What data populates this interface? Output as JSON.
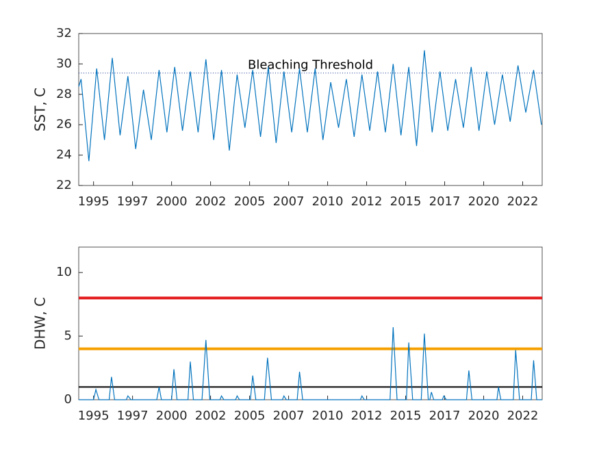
{
  "chart_data": [
    {
      "type": "line",
      "ylabel": "SST, C",
      "xlim": [
        1994.05,
        2023.75
      ],
      "ylim": [
        22,
        32
      ],
      "yticks": [
        22,
        24,
        26,
        28,
        30,
        32
      ],
      "xticks": [
        {
          "value": 1995,
          "label": "1995"
        },
        {
          "value": 1997.5,
          "label": "1997"
        },
        {
          "value": 2000,
          "label": "2000"
        },
        {
          "value": 2002.5,
          "label": "2002"
        },
        {
          "value": 2005,
          "label": "2005"
        },
        {
          "value": 2007.5,
          "label": "2007"
        },
        {
          "value": 2010,
          "label": "2010"
        },
        {
          "value": 2012.5,
          "label": "2012"
        },
        {
          "value": 2015,
          "label": "2015"
        },
        {
          "value": 2017.5,
          "label": "2017"
        },
        {
          "value": 2020,
          "label": "2020"
        },
        {
          "value": 2022.5,
          "label": "2022"
        }
      ],
      "threshold": {
        "value": 29.4,
        "label": "Bleaching Threshold"
      },
      "x": [
        1994.05,
        1994.2,
        1994.7,
        1995.2,
        1995.7,
        1996.2,
        1996.7,
        1997.2,
        1997.7,
        1998.2,
        1998.7,
        1999.2,
        1999.7,
        2000.2,
        2000.7,
        2001.2,
        2001.7,
        2002.2,
        2002.7,
        2003.2,
        2003.7,
        2004.2,
        2004.7,
        2005.2,
        2005.7,
        2006.2,
        2006.7,
        2007.2,
        2007.7,
        2008.2,
        2008.7,
        2009.2,
        2009.7,
        2010.2,
        2010.7,
        2011.2,
        2011.7,
        2012.2,
        2012.7,
        2013.2,
        2013.7,
        2014.2,
        2014.7,
        2015.2,
        2015.7,
        2016.2,
        2016.7,
        2017.2,
        2017.7,
        2018.2,
        2018.7,
        2019.2,
        2019.7,
        2020.2,
        2020.7,
        2021.2,
        2021.7,
        2022.2,
        2022.7,
        2023.2,
        2023.7
      ],
      "series": [
        {
          "color": "#0072bd",
          "values": [
            28.5,
            29.0,
            23.6,
            29.7,
            25.0,
            30.4,
            25.3,
            29.2,
            24.4,
            28.3,
            25.0,
            29.6,
            25.5,
            29.8,
            25.6,
            29.5,
            25.5,
            30.3,
            25.0,
            29.6,
            24.3,
            29.3,
            25.8,
            29.6,
            25.2,
            29.8,
            24.8,
            29.5,
            25.5,
            29.7,
            25.5,
            29.7,
            25.0,
            28.8,
            25.8,
            29.0,
            25.2,
            29.3,
            25.6,
            29.5,
            25.5,
            30.0,
            25.3,
            29.8,
            24.6,
            30.9,
            25.5,
            29.5,
            25.6,
            29.0,
            25.8,
            29.8,
            25.6,
            29.5,
            26.0,
            29.3,
            26.2,
            29.9,
            26.8,
            29.6,
            26.0
          ]
        }
      ]
    },
    {
      "type": "line",
      "ylabel": "DHW, C",
      "xlim": [
        1994.05,
        2023.75
      ],
      "ylim": [
        0,
        12
      ],
      "yticks": [
        0,
        5,
        10
      ],
      "xticks": [
        {
          "value": 1995,
          "label": "1995"
        },
        {
          "value": 1997.5,
          "label": "1997"
        },
        {
          "value": 2000,
          "label": "2000"
        },
        {
          "value": 2002.5,
          "label": "2002"
        },
        {
          "value": 2005,
          "label": "2005"
        },
        {
          "value": 2007.5,
          "label": "2007"
        },
        {
          "value": 2010,
          "label": "2010"
        },
        {
          "value": 2012.5,
          "label": "2012"
        },
        {
          "value": 2015,
          "label": "2015"
        },
        {
          "value": 2017.5,
          "label": "2017"
        },
        {
          "value": 2020,
          "label": "2020"
        },
        {
          "value": 2022.5,
          "label": "2022"
        }
      ],
      "reference_lines": [
        {
          "value": 8,
          "color": "#e41a1c"
        },
        {
          "value": 4,
          "color": "#f5a000"
        },
        {
          "value": 1,
          "color": "#000000"
        }
      ],
      "x": [
        1994.05,
        1995.0,
        1995.15,
        1995.35,
        1996.0,
        1996.15,
        1996.35,
        1997.1,
        1997.2,
        1997.4,
        1999.05,
        1999.2,
        1999.35,
        2000.0,
        2000.15,
        2000.35,
        2001.05,
        2001.2,
        2001.4,
        2001.95,
        2002.2,
        2002.45,
        2003.1,
        2003.2,
        2003.35,
        2004.1,
        2004.2,
        2004.35,
        2005.05,
        2005.2,
        2005.4,
        2005.95,
        2006.15,
        2006.4,
        2007.1,
        2007.2,
        2007.35,
        2008.05,
        2008.2,
        2008.4,
        2012.1,
        2012.2,
        2012.35,
        2014.0,
        2014.2,
        2014.45,
        2015.05,
        2015.2,
        2015.45,
        2016.0,
        2016.2,
        2016.45,
        2016.55,
        2016.65,
        2016.8,
        2017.35,
        2017.45,
        2017.6,
        2018.9,
        2019.05,
        2019.25,
        2020.85,
        2020.95,
        2021.1,
        2021.9,
        2022.05,
        2022.3,
        2023.05,
        2023.2,
        2023.4,
        2023.75
      ],
      "series": [
        {
          "color": "#0072bd",
          "values": [
            0,
            0,
            0.8,
            0,
            0,
            1.8,
            0,
            0,
            0.3,
            0,
            0,
            1.0,
            0,
            0,
            2.4,
            0,
            0,
            3.0,
            0,
            0,
            4.7,
            0,
            0,
            0.3,
            0,
            0,
            0.3,
            0,
            0,
            1.9,
            0,
            0,
            3.3,
            0,
            0,
            0.3,
            0,
            0,
            2.2,
            0,
            0,
            0.3,
            0,
            0,
            5.7,
            0,
            0,
            4.5,
            0,
            0,
            5.2,
            0,
            0,
            0.6,
            0,
            0,
            0.3,
            0,
            0,
            2.3,
            0,
            0,
            1.0,
            0,
            0,
            3.9,
            0,
            0,
            3.1,
            0,
            0
          ]
        }
      ]
    }
  ]
}
